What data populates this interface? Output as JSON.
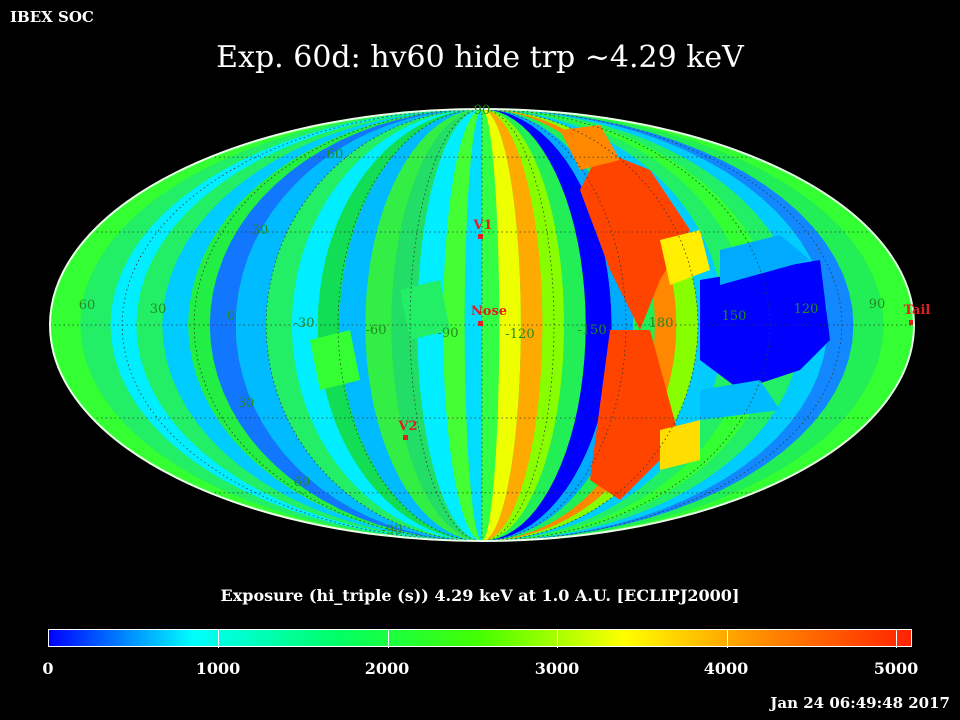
{
  "header": {
    "organization": "IBEX SOC",
    "title": "Exp.   60d: hv60 hide trp ~4.29 keV",
    "timestamp": "Jan 24 06:49:48 2017"
  },
  "map": {
    "projection": "Mollweide (ecliptic J2000)",
    "latitude_labels": {
      "north": [
        "90",
        "60",
        "30"
      ],
      "south": [
        "30",
        "60",
        "-90"
      ]
    },
    "longitude_labels": [
      "60",
      "30",
      "0",
      "-30",
      "-60",
      "-90",
      "-120",
      "-150",
      "180",
      "150",
      "120",
      "90"
    ],
    "markers": [
      {
        "label": "V1",
        "color": "#ff2020"
      },
      {
        "label": "Nose",
        "color": "#ff2020"
      },
      {
        "label": "Tail",
        "color": "#ff2020"
      },
      {
        "label": "V2",
        "color": "#ff2020"
      }
    ],
    "colors": {
      "label_color": "#228b22",
      "marker_color": "#e02020"
    }
  },
  "colorbar": {
    "title": "Exposure (hi_triple (s))  4.29 keV at 1.0 A.U. [ECLIPJ2000]",
    "min": 0,
    "max": 5000,
    "tick_labels": [
      "0",
      "1000",
      "2000",
      "3000",
      "4000",
      "5000"
    ],
    "colormap": [
      "#0000ff",
      "#00ffff",
      "#00ff66",
      "#44ff00",
      "#ffff00",
      "#ff8800",
      "#ff2200"
    ]
  }
}
